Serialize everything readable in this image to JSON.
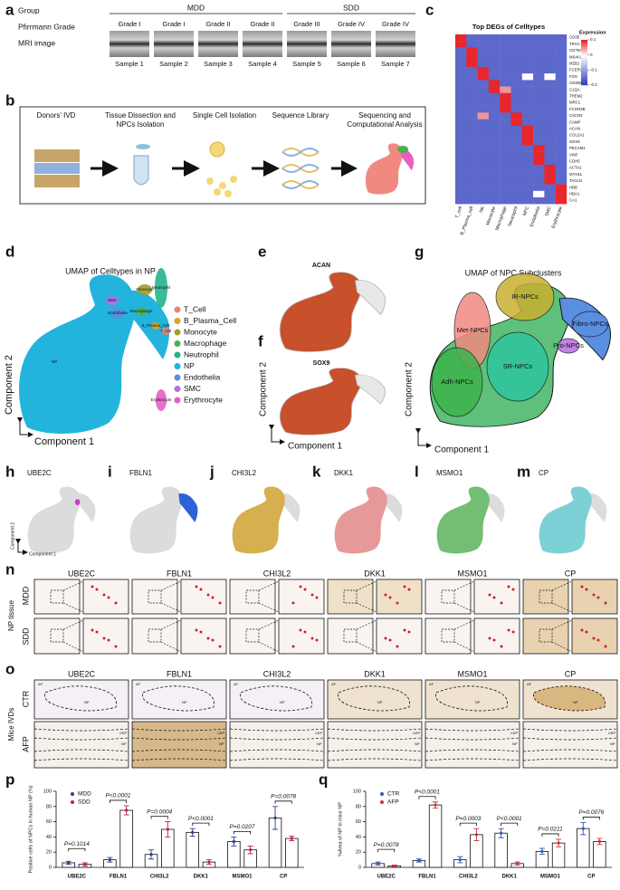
{
  "figure": {
    "a": {
      "letter": "a",
      "group_label": "Group",
      "grade_label": "Pfirrmann Grade",
      "mri_label": "MRI image",
      "groups": [
        "MDD",
        "SDD"
      ],
      "grades": [
        "Grade I",
        "Grade I",
        "Grade II",
        "Grade II",
        "Grade III",
        "Grade IV",
        "Grade IV"
      ],
      "samples": [
        "Sample 1",
        "Sample 2",
        "Sample 3",
        "Sample 4",
        "Sample 5",
        "Sample 6",
        "Sample 7"
      ]
    },
    "b": {
      "letter": "b",
      "steps": [
        "Donors' IVD",
        "Tissue Dissection and NPCs Isolation",
        "Single Cell Isolation",
        "Sequence Library",
        "Sequencing and Computational Analysis"
      ]
    },
    "c": {
      "letter": "c",
      "title": "Top DEGs of Celltypes",
      "legend_title": "Expression",
      "legend_ticks": [
        0.1,
        0,
        -0.1,
        -0.2
      ],
      "color_range": [
        -0.2,
        0.1
      ],
      "colors": [
        "#2536b8",
        "#ffffff",
        "#e8262b"
      ],
      "columns": [
        "T_cell",
        "B_Plasma_cell",
        "NK",
        "Monocyte",
        "Macrophage",
        "Neutrophil",
        "NPC",
        "Endothelia",
        "SMC",
        "Erythrocyte"
      ],
      "rows": [
        "CD3E",
        "TRAC",
        "CD79A",
        "MS4A1",
        "MZB1",
        "FCER1G",
        "FOS",
        "CD300E",
        "C1QA",
        "TREM2",
        "MRC1",
        "FCGR3B",
        "CXCR2",
        "CAMP",
        "ACAN",
        "COL2A1",
        "SOX9",
        "PECAM1",
        "VWF",
        "CDH5",
        "ACTA2",
        "MYH11",
        "TAGLN",
        "HBB",
        "HBA1",
        "CA1"
      ],
      "values": [
        [
          0.1,
          -0.15,
          -0.15,
          -0.15,
          -0.15,
          -0.15,
          -0.15,
          -0.15,
          -0.15,
          -0.15
        ],
        [
          0.1,
          -0.15,
          -0.15,
          -0.15,
          -0.15,
          -0.15,
          -0.15,
          -0.15,
          -0.15,
          -0.15
        ],
        [
          -0.15,
          0.1,
          -0.15,
          -0.15,
          -0.15,
          -0.15,
          -0.15,
          -0.15,
          -0.15,
          -0.15
        ],
        [
          -0.15,
          0.1,
          -0.15,
          -0.15,
          -0.15,
          -0.15,
          -0.15,
          -0.15,
          -0.15,
          -0.15
        ],
        [
          -0.15,
          0.1,
          -0.15,
          -0.15,
          -0.15,
          -0.15,
          -0.15,
          -0.15,
          -0.15,
          -0.15
        ],
        [
          -0.15,
          -0.15,
          0.1,
          -0.15,
          -0.15,
          -0.15,
          -0.15,
          -0.15,
          -0.15,
          -0.15
        ],
        [
          -0.15,
          -0.15,
          0.1,
          -0.15,
          -0.15,
          -0.15,
          0,
          -0.15,
          0,
          -0.15
        ],
        [
          -0.15,
          -0.15,
          -0.15,
          0.1,
          -0.15,
          -0.15,
          -0.15,
          -0.15,
          -0.15,
          -0.15
        ],
        [
          -0.15,
          -0.15,
          -0.15,
          0.1,
          0.05,
          -0.15,
          -0.15,
          -0.15,
          -0.15,
          -0.15
        ],
        [
          -0.15,
          -0.15,
          -0.15,
          -0.15,
          0.1,
          -0.15,
          -0.15,
          -0.15,
          -0.15,
          -0.15
        ],
        [
          -0.15,
          -0.15,
          -0.15,
          -0.15,
          0.1,
          -0.15,
          -0.15,
          -0.15,
          -0.15,
          -0.15
        ],
        [
          -0.15,
          -0.15,
          -0.15,
          -0.15,
          0.1,
          -0.15,
          -0.15,
          -0.15,
          -0.15,
          -0.15
        ],
        [
          -0.15,
          -0.15,
          0.05,
          -0.15,
          -0.15,
          0.1,
          -0.15,
          -0.15,
          -0.15,
          -0.15
        ],
        [
          -0.15,
          -0.15,
          -0.15,
          -0.15,
          -0.15,
          0.1,
          -0.15,
          -0.15,
          -0.15,
          -0.15
        ],
        [
          -0.15,
          -0.15,
          -0.15,
          -0.15,
          -0.15,
          -0.15,
          0.1,
          -0.15,
          -0.15,
          -0.15
        ],
        [
          -0.15,
          -0.15,
          -0.15,
          -0.15,
          -0.15,
          -0.15,
          0.1,
          -0.15,
          -0.15,
          -0.15
        ],
        [
          -0.15,
          -0.15,
          -0.15,
          -0.15,
          -0.15,
          -0.15,
          0.1,
          -0.15,
          -0.15,
          -0.15
        ],
        [
          -0.15,
          -0.15,
          -0.15,
          -0.15,
          -0.15,
          -0.15,
          -0.15,
          0.1,
          -0.15,
          -0.15
        ],
        [
          -0.15,
          -0.15,
          -0.15,
          -0.15,
          -0.15,
          -0.15,
          -0.15,
          0.1,
          -0.15,
          -0.15
        ],
        [
          -0.15,
          -0.15,
          -0.15,
          -0.15,
          -0.15,
          -0.15,
          -0.15,
          0.1,
          -0.15,
          -0.15
        ],
        [
          -0.15,
          -0.15,
          -0.15,
          -0.15,
          -0.15,
          -0.15,
          -0.15,
          -0.15,
          0.1,
          -0.15
        ],
        [
          -0.15,
          -0.15,
          -0.15,
          -0.15,
          -0.15,
          -0.15,
          -0.15,
          -0.15,
          0.1,
          -0.15
        ],
        [
          -0.15,
          -0.15,
          -0.15,
          -0.15,
          -0.15,
          -0.15,
          -0.15,
          -0.15,
          0.1,
          -0.15
        ],
        [
          -0.15,
          -0.15,
          -0.15,
          -0.15,
          -0.15,
          -0.15,
          -0.15,
          -0.15,
          -0.15,
          0.1
        ],
        [
          -0.15,
          -0.15,
          -0.15,
          -0.15,
          -0.15,
          -0.15,
          -0.15,
          0,
          -0.15,
          0.1
        ],
        [
          -0.15,
          -0.15,
          -0.15,
          -0.15,
          -0.15,
          -0.15,
          -0.15,
          -0.15,
          -0.15,
          0.1
        ]
      ]
    },
    "d": {
      "letter": "d",
      "title": "UMAP of Celltypes in NP",
      "x_label": "Component 1",
      "y_label": "Component 2",
      "cell_types": [
        {
          "name": "T_Cell",
          "color": "#f08078"
        },
        {
          "name": "B_Plasma_Cell",
          "color": "#d9a322"
        },
        {
          "name": "Monocyte",
          "color": "#9fa02a"
        },
        {
          "name": "Macrophage",
          "color": "#4cb050"
        },
        {
          "name": "Neutrophil",
          "color": "#22b48c"
        },
        {
          "name": "NP",
          "color": "#22b4dc"
        },
        {
          "name": "Endothelia",
          "color": "#5a8ee0"
        },
        {
          "name": "SMC",
          "color": "#b66fe0"
        },
        {
          "name": "Erythrocyte",
          "color": "#e85ec4"
        }
      ],
      "cluster_labels": [
        "NP",
        "SMC",
        "Endothelia",
        "Monocyte",
        "Neutrophil",
        "Macrophage",
        "B_Plasma_Cell",
        "T_cell",
        "Erythrocyte"
      ]
    },
    "e": {
      "letter": "e",
      "gene": "ACAN"
    },
    "f": {
      "letter": "f",
      "gene": "SOX9"
    },
    "ef_axes": {
      "x_label": "Component 1",
      "y_label": "Component 2"
    },
    "g": {
      "letter": "g",
      "title": "UMAP of NPC Subclusters",
      "x_label": "Component 1",
      "y_label": "Component 2",
      "subclusters": [
        {
          "name": "IR-NPCs",
          "color": "#c8b030"
        },
        {
          "name": "Fibro-NPCs",
          "color": "#5a8ee0"
        },
        {
          "name": "Pro-NPCs",
          "color": "#b66fe0"
        },
        {
          "name": "Met-NPCs",
          "color": "#f08a80"
        },
        {
          "name": "SR-NPCs",
          "color": "#2ec4a0"
        },
        {
          "name": "Adh-NPCs",
          "color": "#3cb44b"
        }
      ]
    },
    "feature_plots": [
      {
        "letter": "h",
        "gene": "UBE2C",
        "color": "#c83cc8"
      },
      {
        "letter": "i",
        "gene": "FBLN1",
        "color": "#2c64d8"
      },
      {
        "letter": "j",
        "gene": "CHI3L2",
        "color": "#d4a020"
      },
      {
        "letter": "k",
        "gene": "DKK1",
        "color": "#ee6a6a"
      },
      {
        "letter": "l",
        "gene": "MSMO1",
        "color": "#2fa82f"
      },
      {
        "letter": "m",
        "gene": "CP",
        "color": "#3cc8d2"
      }
    ],
    "h_axes": {
      "x_label": "Component 1",
      "y_label": "Component 2"
    },
    "n": {
      "letter": "n",
      "side_label": "NP tissue",
      "rows": [
        "MDD",
        "SDD"
      ],
      "genes": [
        "UBE2C",
        "FBLN1",
        "CHI3L2",
        "DKK1",
        "MSMO1",
        "CP"
      ]
    },
    "o": {
      "letter": "o",
      "side_label": "Mice IVDs",
      "rows": [
        "CTR",
        "AFP"
      ],
      "genes": [
        "UBE2C",
        "FBLN1",
        "CHI3L2",
        "DKK1",
        "MSMO1",
        "CP"
      ],
      "regions": [
        "AF",
        "NP",
        "CEP"
      ]
    }
  },
  "chart_data": [
    {
      "type": "bar",
      "panel": "p",
      "y_label": "Positive cells of NPCs in human NP (%)",
      "categories": [
        "UBE2C",
        "FBLN1",
        "CHI3L2",
        "DKK1",
        "MSMO1",
        "CP"
      ],
      "ylim": [
        0,
        100
      ],
      "yticks": [
        0,
        20,
        40,
        60,
        80,
        100
      ],
      "series": [
        {
          "name": "MDD",
          "color": "#2c3e8c",
          "label_color": "#2c3e8c",
          "values": [
            6,
            10,
            17,
            46,
            34,
            65
          ],
          "errors": [
            2,
            3,
            6,
            5,
            6,
            15
          ]
        },
        {
          "name": "SDD",
          "color": "#c2185b",
          "label_color": "#4fb0e0",
          "values": [
            4,
            75,
            50,
            7,
            23,
            38
          ],
          "errors": [
            2,
            6,
            10,
            3,
            5,
            3
          ]
        }
      ],
      "annotations": [
        "P=0.1014",
        "P<0.0001",
        "P=0.0004",
        "P<0.0001",
        "P=0.0207",
        "P=0.0078"
      ]
    },
    {
      "type": "bar",
      "panel": "q",
      "y_label": "%Area of NP in mice NP",
      "categories": [
        "UBE2C",
        "FBLN1",
        "CHI3L2",
        "DKK1",
        "MSMO1",
        "CP"
      ],
      "ylim": [
        0,
        100
      ],
      "yticks": [
        0,
        20,
        40,
        60,
        80,
        100
      ],
      "series": [
        {
          "name": "CTR",
          "color": "#2c5cb0",
          "label_color": "#3a6ac0",
          "values": [
            5,
            9,
            10,
            45,
            21,
            51
          ],
          "errors": [
            2,
            2,
            4,
            6,
            4,
            8
          ]
        },
        {
          "name": "AFP",
          "color": "#d0303a",
          "label_color": "#d0303a",
          "values": [
            2,
            82,
            43,
            5,
            32,
            34
          ],
          "errors": [
            1,
            4,
            8,
            2,
            5,
            4
          ]
        }
      ],
      "annotations": [
        "P=0.0078",
        "P<0.0001",
        "P=0.0003",
        "P<0.0001",
        "P=0.0211",
        "P=0.0076"
      ]
    }
  ]
}
